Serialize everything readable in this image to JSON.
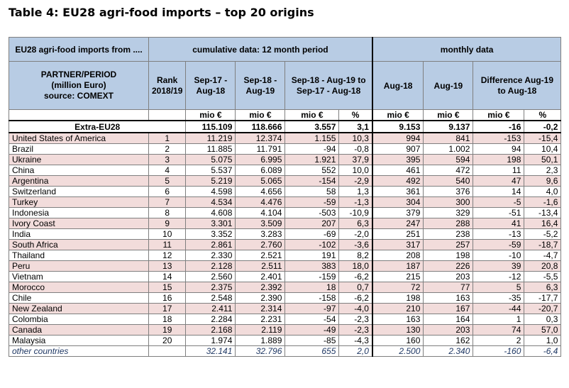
{
  "title": "Table 4: EU28 agri-food imports – top 20 origins",
  "header": {
    "group_label": "EU28 agri-food imports from ....",
    "cumulative_label": "cumulative data: 12 month period",
    "monthly_label": "monthly data",
    "partner_line1": "PARTNER/PERIOD",
    "partner_line2": "(million Euro)",
    "partner_line3": "source: COMEXT",
    "rank_line1": "Rank",
    "rank_line2": "2018/19",
    "col_sep17": "Sep-17 - Aug-18",
    "col_sep18": "Sep-18 - Aug-19",
    "col_change": "Sep-18 - Aug-19 to Sep-17 - Aug-18",
    "col_aug18": "Aug-18",
    "col_aug19": "Aug-19",
    "col_diff": "Difference Aug-19 to Aug-18"
  },
  "units": [
    "mio €",
    "mio €",
    "mio €",
    "%",
    "mio €",
    "mio €",
    "mio €",
    "%"
  ],
  "extra": {
    "label": "Extra-EU28",
    "values": [
      "115.109",
      "118.666",
      "3.557",
      "3,1",
      "9.153",
      "9.137",
      "-16",
      "-0,2"
    ]
  },
  "rows": [
    {
      "name": "United States of America",
      "rank": "1",
      "v": [
        "11.219",
        "12.374",
        "1.155",
        "10,3",
        "994",
        "841",
        "-153",
        "-15,4"
      ]
    },
    {
      "name": "Brazil",
      "rank": "2",
      "v": [
        "11.885",
        "11.791",
        "-94",
        "-0,8",
        "907",
        "1.002",
        "94",
        "10,4"
      ]
    },
    {
      "name": "Ukraine",
      "rank": "3",
      "v": [
        "5.075",
        "6.995",
        "1.921",
        "37,9",
        "395",
        "594",
        "198",
        "50,1"
      ]
    },
    {
      "name": "China",
      "rank": "4",
      "v": [
        "5.537",
        "6.089",
        "552",
        "10,0",
        "461",
        "472",
        "11",
        "2,3"
      ]
    },
    {
      "name": "Argentina",
      "rank": "5",
      "v": [
        "5.219",
        "5.065",
        "-154",
        "-2,9",
        "492",
        "540",
        "47",
        "9,6"
      ]
    },
    {
      "name": "Switzerland",
      "rank": "6",
      "v": [
        "4.598",
        "4.656",
        "58",
        "1,3",
        "361",
        "376",
        "14",
        "4,0"
      ]
    },
    {
      "name": "Turkey",
      "rank": "7",
      "v": [
        "4.534",
        "4.476",
        "-59",
        "-1,3",
        "304",
        "300",
        "-5",
        "-1,6"
      ]
    },
    {
      "name": "Indonesia",
      "rank": "8",
      "v": [
        "4.608",
        "4.104",
        "-503",
        "-10,9",
        "379",
        "329",
        "-51",
        "-13,4"
      ]
    },
    {
      "name": "Ivory Coast",
      "rank": "9",
      "v": [
        "3.301",
        "3.509",
        "207",
        "6,3",
        "247",
        "288",
        "41",
        "16,4"
      ]
    },
    {
      "name": "India",
      "rank": "10",
      "v": [
        "3.352",
        "3.283",
        "-69",
        "-2,0",
        "251",
        "238",
        "-13",
        "-5,2"
      ]
    },
    {
      "name": "South Africa",
      "rank": "11",
      "v": [
        "2.861",
        "2.760",
        "-102",
        "-3,6",
        "317",
        "257",
        "-59",
        "-18,7"
      ]
    },
    {
      "name": "Thailand",
      "rank": "12",
      "v": [
        "2.330",
        "2.521",
        "191",
        "8,2",
        "208",
        "198",
        "-10",
        "-4,7"
      ]
    },
    {
      "name": "Peru",
      "rank": "13",
      "v": [
        "2.128",
        "2.511",
        "383",
        "18,0",
        "187",
        "226",
        "39",
        "20,8"
      ]
    },
    {
      "name": "Vietnam",
      "rank": "14",
      "v": [
        "2.560",
        "2.401",
        "-159",
        "-6,2",
        "215",
        "203",
        "-12",
        "-5,5"
      ]
    },
    {
      "name": "Morocco",
      "rank": "15",
      "v": [
        "2.375",
        "2.392",
        "18",
        "0,7",
        "72",
        "77",
        "5",
        "6,3"
      ]
    },
    {
      "name": "Chile",
      "rank": "16",
      "v": [
        "2.548",
        "2.390",
        "-158",
        "-6,2",
        "198",
        "163",
        "-35",
        "-17,7"
      ]
    },
    {
      "name": "New Zealand",
      "rank": "17",
      "v": [
        "2.411",
        "2.314",
        "-97",
        "-4,0",
        "210",
        "167",
        "-44",
        "-20,7"
      ]
    },
    {
      "name": "Colombia",
      "rank": "18",
      "v": [
        "2.284",
        "2.231",
        "-54",
        "-2,3",
        "163",
        "164",
        "1",
        "0,3"
      ]
    },
    {
      "name": "Canada",
      "rank": "19",
      "v": [
        "2.168",
        "2.119",
        "-49",
        "-2,3",
        "130",
        "203",
        "74",
        "57,0"
      ]
    },
    {
      "name": "Malaysia",
      "rank": "20",
      "v": [
        "1.974",
        "1.889",
        "-85",
        "-4,3",
        "160",
        "162",
        "2",
        "1,0"
      ]
    }
  ],
  "other": {
    "label": "other countries",
    "values": [
      "32.141",
      "32.796",
      "655",
      "2,0",
      "2.500",
      "2.340",
      "-160",
      "-6,4"
    ]
  },
  "colors": {
    "header_fill": "#b8cce4",
    "row_shade": "#f2dcdb",
    "other_text": "#1f3864"
  }
}
